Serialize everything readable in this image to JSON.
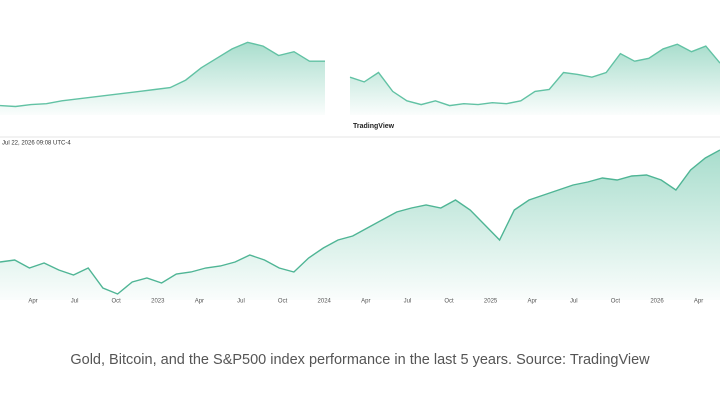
{
  "chart_data": [
    {
      "type": "area",
      "color": "#62c2a4",
      "ylim": [
        0,
        90
      ],
      "values": [
        10,
        9,
        11,
        12,
        15,
        17,
        19,
        21,
        23,
        25,
        27,
        29,
        37,
        50,
        60,
        70,
        77,
        73,
        63,
        67,
        57,
        57
      ]
    },
    {
      "type": "area",
      "color": "#62c2a4",
      "ylim": [
        0,
        90
      ],
      "values": [
        40,
        35,
        45,
        25,
        15,
        11,
        15,
        10,
        12,
        11,
        13,
        12,
        15,
        25,
        27,
        45,
        43,
        40,
        45,
        65,
        57,
        60,
        70,
        75,
        67,
        73,
        55
      ]
    },
    {
      "type": "area",
      "color": "#4fb595",
      "ylim": [
        -10,
        150
      ],
      "timestamp": "Jul 22, 2026 09:08 UTC-4",
      "xticks": [
        "Apr",
        "Jul",
        "Oct",
        "2023",
        "Apr",
        "Jul",
        "Oct",
        "2024",
        "Apr",
        "Jul",
        "Oct",
        "2025",
        "Apr",
        "Jul",
        "Oct",
        "2026",
        "Apr"
      ],
      "values": [
        28,
        30,
        22,
        27,
        20,
        15,
        22,
        2,
        -4,
        8,
        12,
        7,
        16,
        18,
        22,
        24,
        28,
        35,
        30,
        22,
        18,
        32,
        42,
        50,
        54,
        62,
        70,
        78,
        82,
        85,
        82,
        90,
        80,
        65,
        50,
        80,
        90,
        95,
        100,
        105,
        108,
        112,
        110,
        114,
        115,
        110,
        100,
        120,
        132,
        140
      ]
    }
  ],
  "watermark": "TradingView",
  "caption": "Gold, Bitcoin, and the S&P500 index performance in the last 5 years. Source: TradingView"
}
